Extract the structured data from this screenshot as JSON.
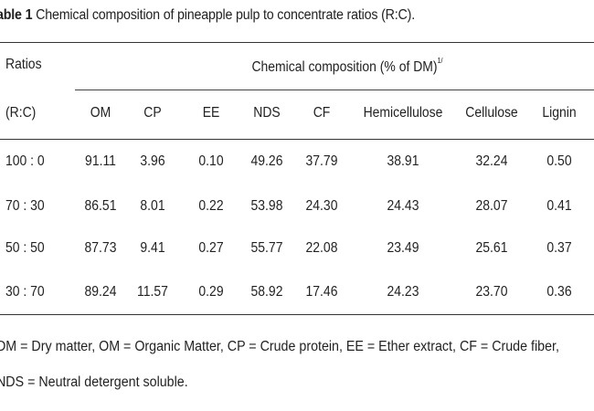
{
  "caption": {
    "label": "able 1",
    "text": "Chemical composition of pineapple pulp to concentrate ratios (R:C)."
  },
  "table": {
    "row_header_1": "Ratios",
    "row_header_2": "(R:C)",
    "span_header": "Chemical composition (% of DM)",
    "span_header_sup": "1/",
    "columns": [
      "OM",
      "CP",
      "EE",
      "NDS",
      "CF",
      "Hemicellulose",
      "Cellulose",
      "Lignin"
    ],
    "rows": [
      {
        "ratio": "100 : 0",
        "values": [
          "91.11",
          "3.96",
          "0.10",
          "49.26",
          "37.79",
          "38.91",
          "32.24",
          "0.50"
        ]
      },
      {
        "ratio": "70 : 30",
        "values": [
          "86.51",
          "8.01",
          "0.22",
          "53.98",
          "24.30",
          "24.43",
          "28.07",
          "0.41"
        ]
      },
      {
        "ratio": "50 : 50",
        "values": [
          "87.73",
          "9.41",
          "0.27",
          "55.77",
          "22.08",
          "23.49",
          "25.61",
          "0.37"
        ]
      },
      {
        "ratio": "30 : 70",
        "values": [
          "89.24",
          "11.57",
          "0.29",
          "58.92",
          "17.46",
          "24.23",
          "23.70",
          "0.36"
        ]
      }
    ]
  },
  "footnotes": [
    "DM = Dry matter, OM = Organic Matter, CP = Crude protein, EE = Ether extract, CF = Crude fiber,",
    "NDS = Neutral detergent soluble."
  ]
}
